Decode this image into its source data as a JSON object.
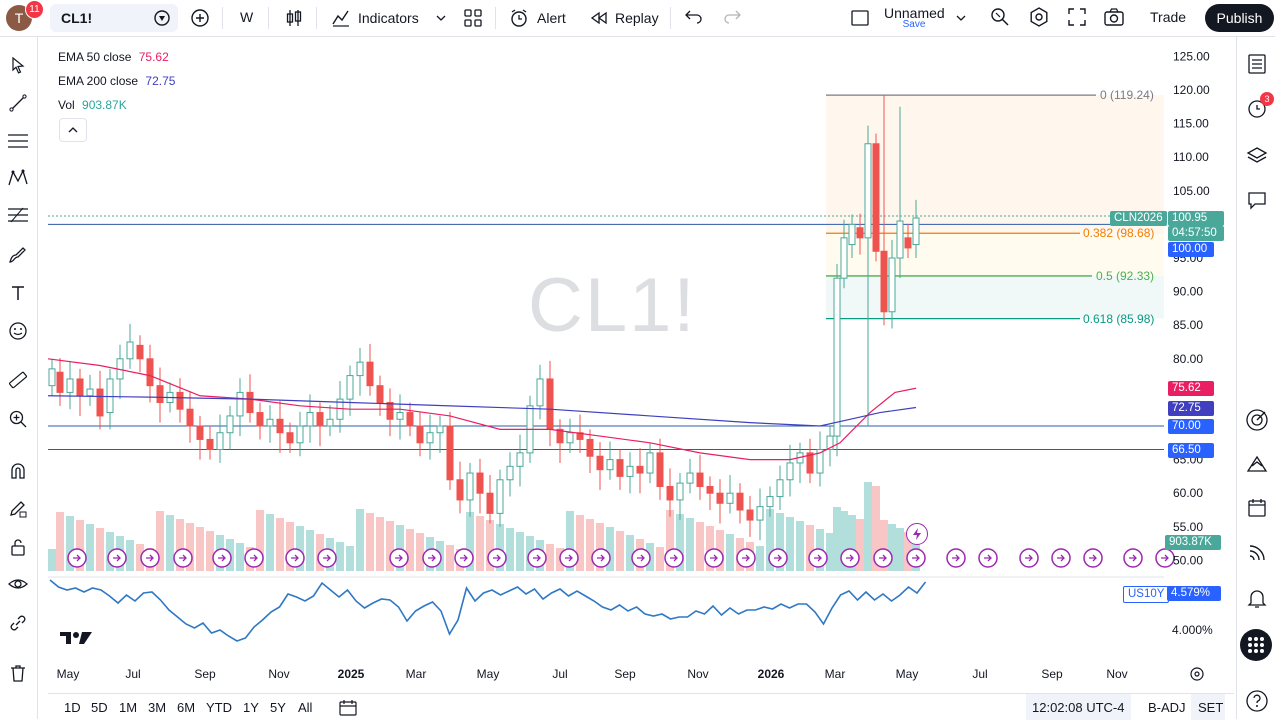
{
  "user": {
    "initial": "T",
    "notifications": "11"
  },
  "toolbar": {
    "symbol": "CL1!",
    "interval": "W",
    "indicators_label": "Indicators",
    "alert_label": "Alert",
    "replay_label": "Replay",
    "layout_name": "Unnamed",
    "layout_save": "Save",
    "trade_label": "Trade",
    "publish_label": "Publish"
  },
  "legend": {
    "ema50_label": "EMA 50 close",
    "ema50_value": "75.62",
    "ema200_label": "EMA 200 close",
    "ema200_value": "72.75",
    "vol_label": "Vol",
    "vol_value": "903.87K"
  },
  "watermark": "CL1!",
  "price_axis": {
    "ticks": [
      "125.00",
      "120.00",
      "115.00",
      "110.00",
      "105.00",
      "100.00",
      "95.00",
      "90.00",
      "85.00",
      "80.00",
      "75.00",
      "70.00",
      "65.00",
      "60.00",
      "55.00",
      "50.00"
    ],
    "current_symbol": "CLN2026",
    "current_price": "100.95",
    "countdown": "04:57:50",
    "tags": {
      "p100": "100.00",
      "ema50": "75.62",
      "ema200": "72.75",
      "p70": "70.00",
      "p66": "66.50",
      "vol": "903.87K"
    }
  },
  "fib": {
    "level0": "0 (119.24)",
    "level382": "0.382 (98.68)",
    "level5": "0.5 (92.33)",
    "level618": "0.618 (85.98)"
  },
  "compare": {
    "symbol": "US10Y",
    "value": "4.579%",
    "tick": "4.000%"
  },
  "time_axis": [
    "May",
    "Jul",
    "Sep",
    "Nov",
    "2025",
    "Mar",
    "May",
    "Jul",
    "Sep",
    "Nov",
    "2026",
    "Mar",
    "May",
    "Jul",
    "Sep",
    "Nov"
  ],
  "bottom": {
    "ranges": [
      "1D",
      "5D",
      "1M",
      "3M",
      "6M",
      "YTD",
      "1Y",
      "5Y",
      "All"
    ],
    "clock": "12:02:08 UTC-4",
    "badj": "B-ADJ",
    "set": "SET"
  },
  "right_badge": "3",
  "colors": {
    "up": "#4aa89a",
    "down": "#ef5350",
    "ema50": "#e91e63",
    "ema200": "#3f3fbf",
    "accent": "#2962ff",
    "fib382": "#f57c00",
    "fib5": "#4caf50",
    "fib618": "#089981"
  }
}
